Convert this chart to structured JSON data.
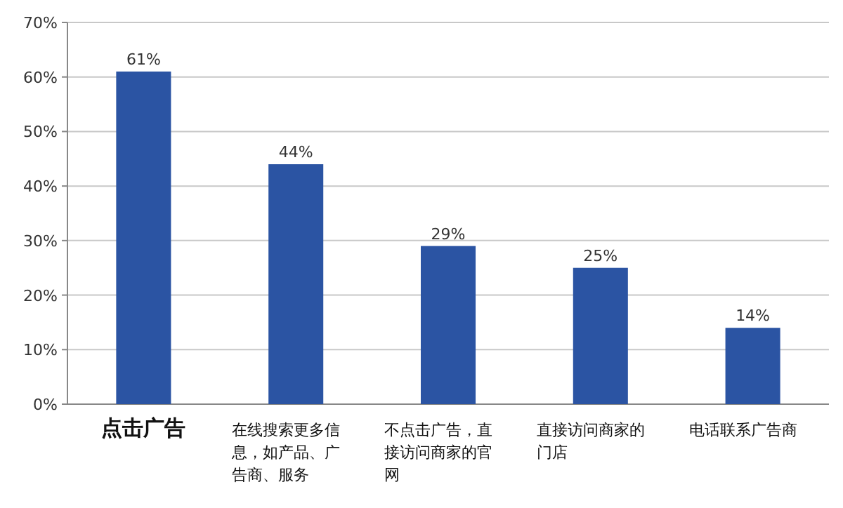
{
  "chart_data": {
    "type": "bar",
    "categories": [
      "点击广告",
      "在线搜索更多信息，如产品、广告商、服务",
      "不点击广告，直接访问商家的官网",
      "直接访问商家的门店",
      "电话联系广告商"
    ],
    "values": [
      61,
      44,
      29,
      25,
      14
    ],
    "color": "#2b54a3",
    "ylim": [
      0,
      70
    ],
    "yticks": [
      {
        "value": 0,
        "label": "0%"
      },
      {
        "value": 10,
        "label": "10%"
      },
      {
        "value": 20,
        "label": "20%"
      },
      {
        "value": 30,
        "label": "30%"
      },
      {
        "value": 40,
        "label": "40%"
      },
      {
        "value": 50,
        "label": "50%"
      },
      {
        "value": 60,
        "label": "60%"
      },
      {
        "value": 70,
        "label": "70%"
      }
    ],
    "value_labels": [
      "61%",
      "44%",
      "29%",
      "25%",
      "14%"
    ],
    "grid": "y"
  }
}
